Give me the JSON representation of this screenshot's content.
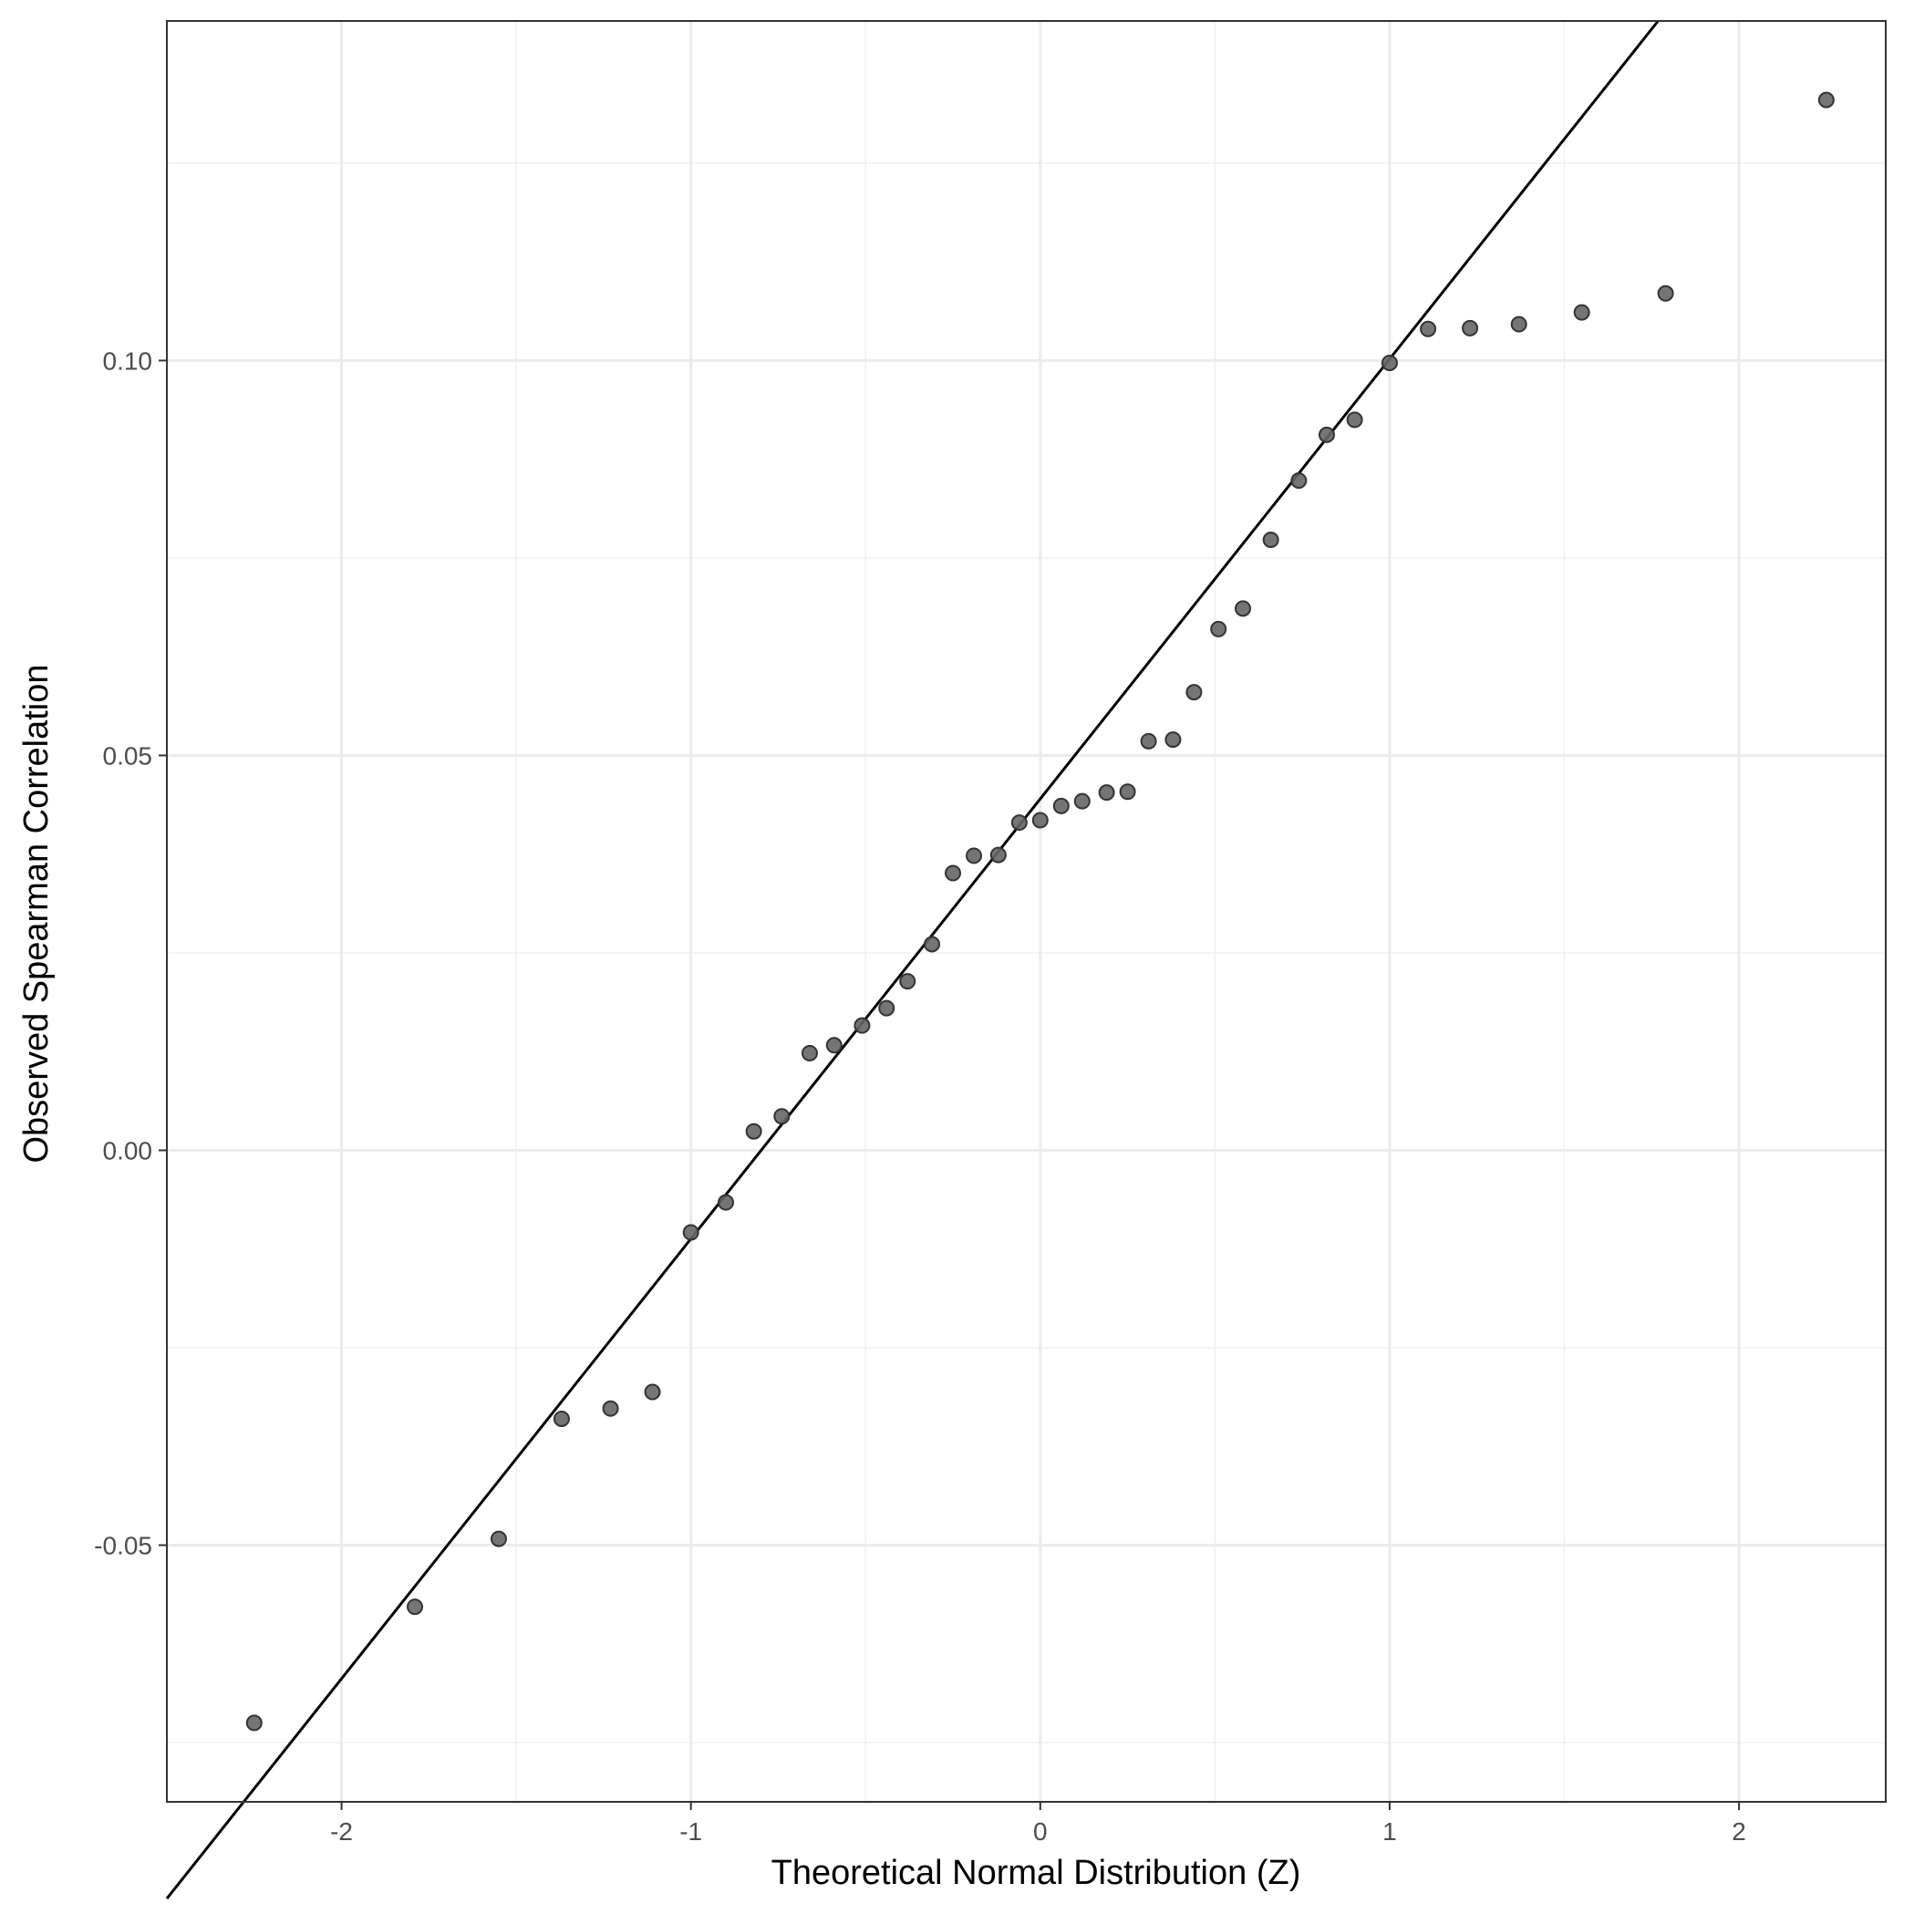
{
  "chart_data": {
    "type": "scatter",
    "title": "",
    "xlabel": "Theoretical Normal Distribution (Z)",
    "ylabel": "Observed Spearman Correlation",
    "xlim": [
      -2.5,
      2.42
    ],
    "ylim": [
      -0.0825,
      0.143
    ],
    "x_ticks": [
      -2,
      -1,
      0,
      1,
      2
    ],
    "x_tick_labels": [
      "-2",
      "-1",
      "0",
      "1",
      "2"
    ],
    "y_ticks": [
      -0.05,
      0.0,
      0.05,
      0.1
    ],
    "y_tick_labels": [
      "-0.05",
      "0.00",
      "0.05",
      "0.10"
    ],
    "x_minor_grid": [
      -1.5,
      -0.5,
      0.5,
      1.5
    ],
    "y_minor_grid": [
      -0.075,
      -0.025,
      0.025,
      0.075,
      0.125
    ],
    "grid": true,
    "reference_line": {
      "slope": 0.0557,
      "intercept": 0.0445
    },
    "points": [
      [
        -2.25,
        -0.0725
      ],
      [
        -1.79,
        -0.0578
      ],
      [
        -1.55,
        -0.0492
      ],
      [
        -1.37,
        -0.034
      ],
      [
        -1.23,
        -0.0327
      ],
      [
        -1.11,
        -0.0306
      ],
      [
        -1.0,
        -0.0104
      ],
      [
        -0.9,
        -0.0066
      ],
      [
        -0.82,
        0.0024
      ],
      [
        -0.74,
        0.0043
      ],
      [
        -0.66,
        0.0123
      ],
      [
        -0.59,
        0.0133
      ],
      [
        -0.51,
        0.0158
      ],
      [
        -0.44,
        0.018
      ],
      [
        -0.38,
        0.0214
      ],
      [
        -0.31,
        0.0261
      ],
      [
        -0.25,
        0.0351
      ],
      [
        -0.19,
        0.0373
      ],
      [
        -0.12,
        0.0374
      ],
      [
        -0.06,
        0.0415
      ],
      [
        0.0,
        0.0418
      ],
      [
        0.06,
        0.0436
      ],
      [
        0.12,
        0.0442
      ],
      [
        0.19,
        0.0453
      ],
      [
        0.25,
        0.0454
      ],
      [
        0.31,
        0.0518
      ],
      [
        0.38,
        0.052
      ],
      [
        0.44,
        0.058
      ],
      [
        0.51,
        0.066
      ],
      [
        0.58,
        0.0686
      ],
      [
        0.66,
        0.0773
      ],
      [
        0.74,
        0.0848
      ],
      [
        0.82,
        0.0906
      ],
      [
        0.9,
        0.0925
      ],
      [
        1.0,
        0.0997
      ],
      [
        1.11,
        0.104
      ],
      [
        1.23,
        0.1041
      ],
      [
        1.37,
        0.1046
      ],
      [
        1.55,
        0.1061
      ],
      [
        1.79,
        0.1085
      ],
      [
        2.25,
        0.133
      ]
    ],
    "point_color": "#666666",
    "line_color": "#000000"
  }
}
